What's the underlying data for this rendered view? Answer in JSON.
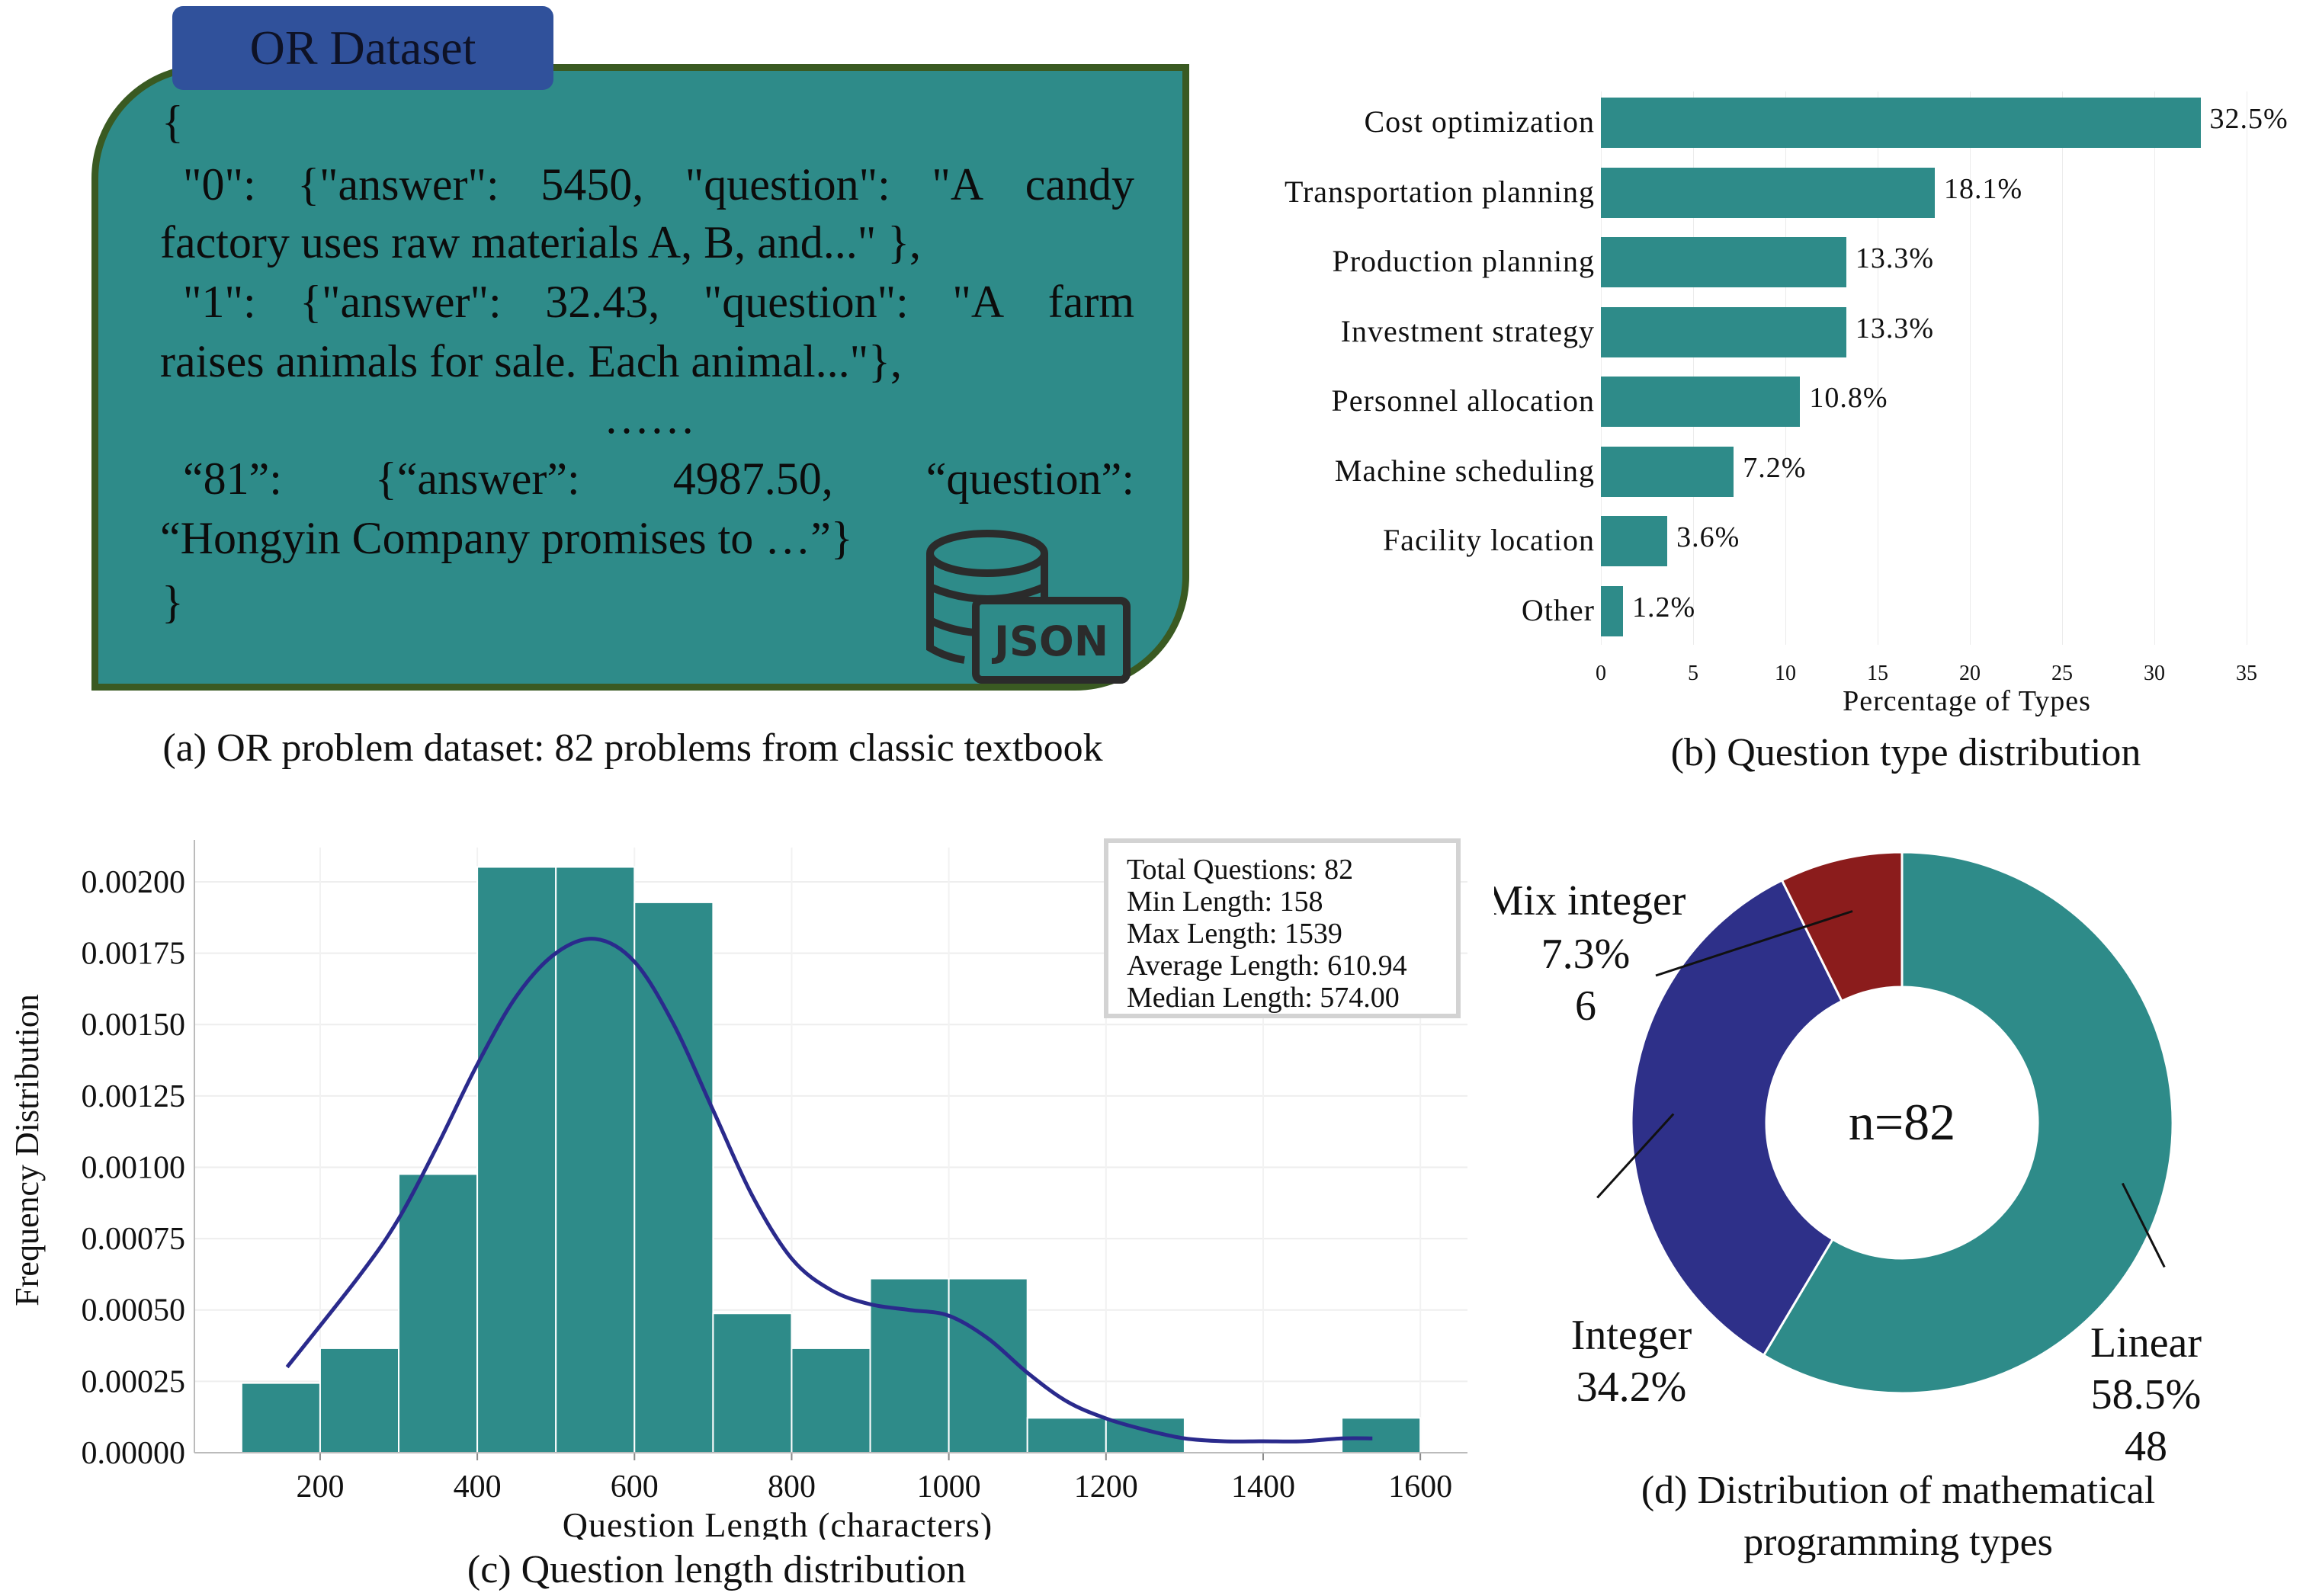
{
  "panel_a": {
    "tab_title": "OR Dataset",
    "open_brace": "{",
    "line1_tokens": [
      "\"0\":",
      "{\"answer\":",
      "5450,",
      "\"question\":",
      "\"A",
      "candy"
    ],
    "line2": "factory uses raw materials A, B, and...\" },",
    "line3_tokens": [
      "\"1\":",
      "{\"answer\":",
      "32.43,",
      "\"question\":",
      "\"A",
      "farm"
    ],
    "line4": "raises animals for sale. Each animal...\"},",
    "ellipsis": "……",
    "line5_tokens": [
      "“81”:",
      "{“answer”:",
      "4987.50,",
      "“question”:"
    ],
    "line6": "“Hongyin Company promises to …”}",
    "close_brace": "}",
    "json_icon_label": "JSON",
    "caption": "(a) OR problem dataset: 82 problems from classic textbook"
  },
  "chart_data": [
    {
      "type": "bar",
      "orientation": "horizontal",
      "categories": [
        "Cost optimization",
        "Transportation planning",
        "Production planning",
        "Investment strategy",
        "Personnel allocation",
        "Machine scheduling",
        "Facility location",
        "Other"
      ],
      "values": [
        32.5,
        18.1,
        13.3,
        13.3,
        10.8,
        7.2,
        3.6,
        1.2
      ],
      "value_labels": [
        "32.5%",
        "18.1%",
        "13.3%",
        "13.3%",
        "10.8%",
        "7.2%",
        "3.6%",
        "1.2%"
      ],
      "xlabel": "Percentage of Types",
      "xticks": [
        0,
        5,
        10,
        15,
        20,
        25,
        30,
        35
      ],
      "xlim": [
        0,
        35
      ],
      "grid": true,
      "color": "#2e8b89",
      "caption": "(b) Question type distribution"
    },
    {
      "type": "bar",
      "subtype": "histogram",
      "bin_edges": [
        100,
        200,
        300,
        400,
        500,
        600,
        700,
        800,
        900,
        1000,
        1100,
        1200,
        1300,
        1400,
        1500,
        1600
      ],
      "values": [
        0.000244,
        0.000366,
        0.000976,
        0.002052,
        0.002052,
        0.001928,
        0.000488,
        0.000366,
        0.00061,
        0.00061,
        0.000122,
        0.000122,
        0,
        0,
        0.000122
      ],
      "kde": {
        "x": [
          158,
          250,
          300,
          350,
          400,
          450,
          500,
          550,
          600,
          650,
          700,
          750,
          800,
          850,
          900,
          950,
          1000,
          1050,
          1100,
          1150,
          1200,
          1250,
          1300,
          1350,
          1400,
          1450,
          1500,
          1539
        ],
        "y": [
          0.0003,
          0.00062,
          0.00082,
          0.00108,
          0.00136,
          0.0016,
          0.00175,
          0.0018,
          0.00172,
          0.0015,
          0.0012,
          0.0009,
          0.00068,
          0.00057,
          0.00052,
          0.0005,
          0.00048,
          0.0004,
          0.00028,
          0.00018,
          0.00012,
          8e-05,
          5e-05,
          4e-05,
          4e-05,
          4e-05,
          5e-05,
          5e-05
        ]
      },
      "xlabel": "Question Length (characters)",
      "ylabel": "Frequency Distribution",
      "xticks": [
        200,
        400,
        600,
        800,
        1000,
        1200,
        1400,
        1600
      ],
      "yticks": [
        "0.00000",
        "0.00025",
        "0.00050",
        "0.00075",
        "0.00100",
        "0.00125",
        "0.00150",
        "0.00175",
        "0.00200"
      ],
      "xlim": [
        40,
        1660
      ],
      "ylim": [
        0,
        0.00212
      ],
      "grid": true,
      "bar_color": "#2e8b89",
      "line_color": "#2a2a8c",
      "stats": [
        "Total Questions: 82",
        "Min Length: 158",
        "Max Length: 1539",
        "Average Length: 610.94",
        "Median Length: 574.00"
      ],
      "caption": "(c) Question length distribution"
    },
    {
      "type": "pie",
      "subtype": "donut",
      "categories": [
        "Linear",
        "Integer",
        "Mix integer"
      ],
      "values": [
        48,
        28,
        6
      ],
      "percent_labels": [
        "58.5%",
        "34.2%",
        "7.3%"
      ],
      "count_labels": [
        "48",
        "",
        "6"
      ],
      "colors": [
        "#2e8b89",
        "#2e3089",
        "#8b1c1c"
      ],
      "center_label": "n=82",
      "caption_line1": "(d) Distribution of mathematical",
      "caption_line2": "programming types"
    }
  ]
}
